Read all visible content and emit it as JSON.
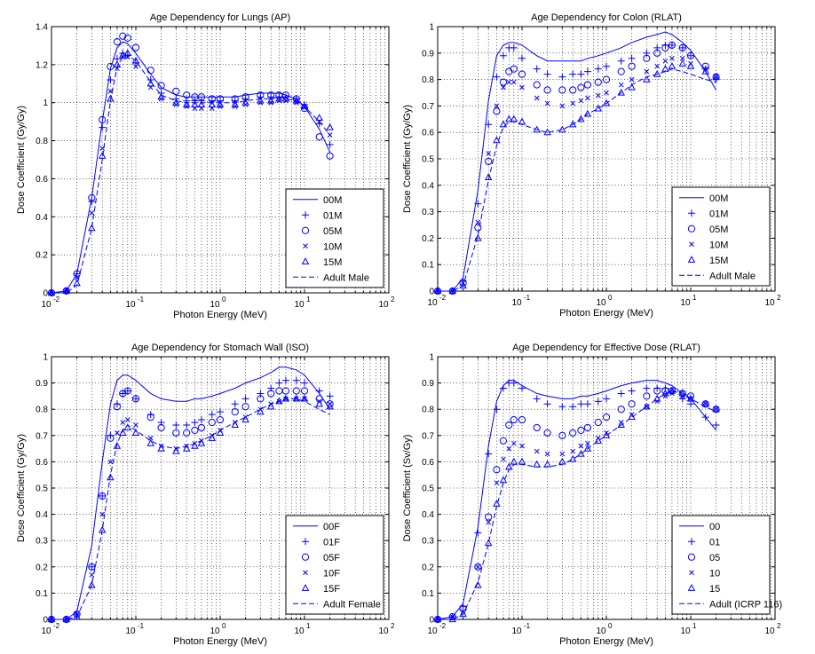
{
  "chart_data": [
    {
      "type": "scatter",
      "title": "Age Dependency for Lungs (AP)",
      "xlabel": "Photon Energy (MeV)",
      "ylabel": "Dose Coefficient (Gy/Gy)",
      "xscale": "log",
      "xlim": [
        0.01,
        100
      ],
      "ylim": [
        0,
        1.4
      ],
      "yticks": [
        0,
        0.2,
        0.4,
        0.6,
        0.8,
        1,
        1.2,
        1.4
      ],
      "ytick_labels": [
        "0",
        "0.2",
        "0.4",
        "0.6",
        "0.8",
        "1",
        "1.2",
        "1.4"
      ],
      "xtick_bases": [
        "10",
        "10",
        "10",
        "10",
        "10"
      ],
      "xtick_exps": [
        "-2",
        "-1",
        "0",
        "1",
        "2"
      ],
      "grid": true,
      "legend_position": "lower-right",
      "x": [
        0.01,
        0.015,
        0.02,
        0.03,
        0.04,
        0.05,
        0.06,
        0.07,
        0.08,
        0.1,
        0.15,
        0.2,
        0.3,
        0.4,
        0.5,
        0.6,
        0.8,
        1,
        1.5,
        2,
        3,
        4,
        5,
        6,
        8,
        10,
        15,
        20
      ],
      "series": [
        {
          "name": "00M",
          "style": "line",
          "values": [
            0.0,
            0.01,
            0.1,
            0.5,
            0.9,
            1.18,
            1.29,
            1.32,
            1.31,
            1.26,
            1.15,
            1.08,
            1.04,
            1.03,
            1.03,
            1.03,
            1.03,
            1.03,
            1.03,
            1.04,
            1.05,
            1.05,
            1.05,
            1.04,
            1.02,
            0.98,
            0.86,
            0.74
          ]
        },
        {
          "name": "01M",
          "style": "plus",
          "values": [
            0.0,
            0.01,
            0.1,
            0.48,
            0.87,
            1.12,
            1.23,
            1.26,
            1.25,
            1.21,
            1.12,
            1.05,
            1.02,
            1.01,
            1.01,
            1.01,
            1.01,
            1.01,
            1.01,
            1.02,
            1.03,
            1.03,
            1.03,
            1.03,
            1.02,
            0.99,
            0.89,
            0.78
          ]
        },
        {
          "name": "05M",
          "style": "circle",
          "values": [
            0.0,
            0.01,
            0.1,
            0.5,
            0.91,
            1.19,
            1.32,
            1.35,
            1.34,
            1.29,
            1.17,
            1.09,
            1.06,
            1.04,
            1.03,
            1.03,
            1.02,
            1.02,
            1.02,
            1.03,
            1.04,
            1.04,
            1.04,
            1.04,
            1.02,
            0.97,
            0.82,
            0.72
          ]
        },
        {
          "name": "10M",
          "style": "x",
          "values": [
            0.0,
            0.01,
            0.08,
            0.42,
            0.76,
            1.06,
            1.18,
            1.24,
            1.24,
            1.19,
            1.08,
            1.02,
            0.99,
            0.98,
            0.97,
            0.97,
            0.97,
            0.98,
            0.98,
            0.99,
            1.0,
            1.0,
            1.01,
            1.01,
            1.0,
            0.98,
            0.9,
            0.83
          ]
        },
        {
          "name": "15M",
          "style": "triangle",
          "values": [
            0.0,
            0.01,
            0.05,
            0.34,
            0.72,
            1.02,
            1.2,
            1.25,
            1.26,
            1.22,
            1.1,
            1.03,
            1.0,
            0.99,
            0.99,
            0.99,
            0.99,
            0.99,
            0.99,
            1.0,
            1.01,
            1.01,
            1.02,
            1.02,
            1.01,
            0.98,
            0.92,
            0.87
          ]
        },
        {
          "name": "Adult Male",
          "style": "dash",
          "values": [
            0.0,
            0.0,
            0.04,
            0.34,
            0.7,
            1.01,
            1.19,
            1.24,
            1.25,
            1.22,
            1.11,
            1.04,
            1.01,
            1.0,
            1.0,
            1.0,
            1.0,
            1.0,
            1.0,
            1.01,
            1.02,
            1.02,
            1.03,
            1.02,
            1.01,
            0.98,
            0.9,
            0.83
          ]
        }
      ]
    },
    {
      "type": "scatter",
      "title": "Age Dependency for Colon (RLAT)",
      "xlabel": "Photon Energy (MeV)",
      "ylabel": "Dose Coefficient (Gy/Gy)",
      "xscale": "log",
      "xlim": [
        0.01,
        100
      ],
      "ylim": [
        0,
        1
      ],
      "yticks": [
        0,
        0.1,
        0.2,
        0.3,
        0.4,
        0.5,
        0.6,
        0.7,
        0.8,
        0.9,
        1
      ],
      "ytick_labels": [
        "0",
        "0.1",
        "0.2",
        "0.3",
        "0.4",
        "0.5",
        "0.6",
        "0.7",
        "0.8",
        "0.9",
        "1"
      ],
      "xtick_bases": [
        "10",
        "10",
        "10",
        "10",
        "10"
      ],
      "xtick_exps": [
        "-2",
        "-1",
        "0",
        "1",
        "2"
      ],
      "grid": true,
      "legend_position": "lower-right",
      "x": [
        0.01,
        0.015,
        0.02,
        0.03,
        0.04,
        0.05,
        0.06,
        0.07,
        0.08,
        0.1,
        0.15,
        0.2,
        0.3,
        0.4,
        0.5,
        0.6,
        0.8,
        1,
        1.5,
        2,
        3,
        4,
        5,
        6,
        8,
        10,
        15,
        20
      ],
      "series": [
        {
          "name": "00M",
          "style": "line",
          "values": [
            0.0,
            0.0,
            0.05,
            0.38,
            0.72,
            0.89,
            0.93,
            0.94,
            0.94,
            0.93,
            0.89,
            0.87,
            0.87,
            0.87,
            0.87,
            0.88,
            0.89,
            0.9,
            0.92,
            0.94,
            0.96,
            0.97,
            0.98,
            0.97,
            0.94,
            0.91,
            0.83,
            0.76
          ]
        },
        {
          "name": "01M",
          "style": "plus",
          "values": [
            0.0,
            0.0,
            0.04,
            0.33,
            0.63,
            0.81,
            0.89,
            0.92,
            0.92,
            0.88,
            0.84,
            0.82,
            0.81,
            0.82,
            0.82,
            0.83,
            0.84,
            0.85,
            0.87,
            0.88,
            0.9,
            0.92,
            0.93,
            0.93,
            0.92,
            0.89,
            0.84,
            0.8
          ]
        },
        {
          "name": "05M",
          "style": "circle",
          "values": [
            0.0,
            0.0,
            0.03,
            0.24,
            0.49,
            0.68,
            0.79,
            0.83,
            0.84,
            0.82,
            0.78,
            0.76,
            0.76,
            0.76,
            0.77,
            0.78,
            0.79,
            0.8,
            0.83,
            0.85,
            0.88,
            0.9,
            0.92,
            0.93,
            0.92,
            0.89,
            0.85,
            0.81
          ]
        },
        {
          "name": "10M",
          "style": "x",
          "values": [
            0.0,
            0.0,
            0.03,
            0.26,
            0.52,
            0.7,
            0.77,
            0.79,
            0.79,
            0.77,
            0.73,
            0.71,
            0.7,
            0.71,
            0.72,
            0.73,
            0.74,
            0.75,
            0.78,
            0.8,
            0.83,
            0.85,
            0.87,
            0.88,
            0.88,
            0.86,
            0.84,
            0.81
          ]
        },
        {
          "name": "15M",
          "style": "triangle",
          "values": [
            0.0,
            0.0,
            0.02,
            0.2,
            0.43,
            0.57,
            0.63,
            0.65,
            0.65,
            0.64,
            0.61,
            0.6,
            0.61,
            0.63,
            0.65,
            0.67,
            0.69,
            0.71,
            0.75,
            0.77,
            0.8,
            0.82,
            0.84,
            0.85,
            0.86,
            0.85,
            0.83,
            0.81
          ]
        },
        {
          "name": "Adult Male",
          "style": "dash",
          "values": [
            0.0,
            0.0,
            0.02,
            0.21,
            0.42,
            0.55,
            0.62,
            0.64,
            0.64,
            0.63,
            0.61,
            0.6,
            0.61,
            0.63,
            0.65,
            0.67,
            0.69,
            0.71,
            0.75,
            0.78,
            0.81,
            0.82,
            0.83,
            0.84,
            0.83,
            0.82,
            0.8,
            0.79
          ]
        }
      ]
    },
    {
      "type": "scatter",
      "title": "Age Dependency for Stomach Wall (ISO)",
      "xlabel": "Photon Energy (MeV)",
      "ylabel": "Dose Coefficient (Gy/Gy)",
      "xscale": "log",
      "xlim": [
        0.01,
        100
      ],
      "ylim": [
        0,
        1
      ],
      "yticks": [
        0,
        0.1,
        0.2,
        0.3,
        0.4,
        0.5,
        0.6,
        0.7,
        0.8,
        0.9,
        1
      ],
      "ytick_labels": [
        "0",
        "0.1",
        "0.2",
        "0.3",
        "0.4",
        "0.5",
        "0.6",
        "0.7",
        "0.8",
        "0.9",
        "1"
      ],
      "xtick_bases": [
        "10",
        "10",
        "10",
        "10",
        "10"
      ],
      "xtick_exps": [
        "-2",
        "-1",
        "0",
        "1",
        "2"
      ],
      "grid": true,
      "legend_position": "lower-right",
      "x": [
        0.01,
        0.015,
        0.02,
        0.03,
        0.04,
        0.05,
        0.06,
        0.07,
        0.08,
        0.1,
        0.15,
        0.2,
        0.3,
        0.4,
        0.5,
        0.6,
        0.8,
        1,
        1.5,
        2,
        3,
        4,
        5,
        6,
        8,
        10,
        15,
        20
      ],
      "series": [
        {
          "name": "00F",
          "style": "line",
          "values": [
            0.0,
            0.0,
            0.03,
            0.28,
            0.6,
            0.82,
            0.91,
            0.93,
            0.93,
            0.91,
            0.86,
            0.84,
            0.83,
            0.83,
            0.84,
            0.84,
            0.85,
            0.86,
            0.88,
            0.9,
            0.92,
            0.94,
            0.96,
            0.96,
            0.95,
            0.93,
            0.86,
            0.8
          ]
        },
        {
          "name": "01F",
          "style": "plus",
          "values": [
            0.0,
            0.0,
            0.02,
            0.2,
            0.47,
            0.7,
            0.82,
            0.86,
            0.87,
            0.84,
            0.78,
            0.75,
            0.74,
            0.74,
            0.75,
            0.76,
            0.78,
            0.79,
            0.82,
            0.84,
            0.86,
            0.88,
            0.9,
            0.91,
            0.91,
            0.9,
            0.87,
            0.85
          ]
        },
        {
          "name": "05F",
          "style": "circle",
          "values": [
            0.0,
            0.0,
            0.02,
            0.2,
            0.47,
            0.69,
            0.81,
            0.86,
            0.87,
            0.84,
            0.77,
            0.73,
            0.71,
            0.71,
            0.72,
            0.73,
            0.75,
            0.76,
            0.79,
            0.81,
            0.84,
            0.86,
            0.87,
            0.87,
            0.87,
            0.87,
            0.84,
            0.82
          ]
        },
        {
          "name": "10F",
          "style": "x",
          "values": [
            0.0,
            0.0,
            0.02,
            0.17,
            0.4,
            0.6,
            0.71,
            0.75,
            0.76,
            0.74,
            0.69,
            0.66,
            0.65,
            0.66,
            0.67,
            0.68,
            0.7,
            0.72,
            0.75,
            0.77,
            0.8,
            0.82,
            0.83,
            0.84,
            0.84,
            0.84,
            0.83,
            0.82
          ]
        },
        {
          "name": "15F",
          "style": "triangle",
          "values": [
            0.0,
            0.0,
            0.01,
            0.13,
            0.34,
            0.54,
            0.66,
            0.71,
            0.73,
            0.71,
            0.67,
            0.65,
            0.64,
            0.65,
            0.66,
            0.67,
            0.69,
            0.71,
            0.74,
            0.76,
            0.79,
            0.81,
            0.83,
            0.84,
            0.84,
            0.84,
            0.82,
            0.81
          ]
        },
        {
          "name": "Adult Female",
          "style": "dash",
          "values": [
            0.0,
            0.0,
            0.01,
            0.13,
            0.34,
            0.55,
            0.67,
            0.72,
            0.74,
            0.72,
            0.68,
            0.66,
            0.65,
            0.66,
            0.67,
            0.68,
            0.7,
            0.72,
            0.75,
            0.77,
            0.8,
            0.82,
            0.83,
            0.84,
            0.84,
            0.83,
            0.8,
            0.78
          ]
        }
      ]
    },
    {
      "type": "scatter",
      "title": "Age Dependency for Effective Dose (RLAT)",
      "xlabel": "Photon Energy (MeV)",
      "ylabel": "Dose Coefficient (Sv/Gy)",
      "xscale": "log",
      "xlim": [
        0.01,
        100
      ],
      "ylim": [
        0,
        1
      ],
      "yticks": [
        0,
        0.1,
        0.2,
        0.3,
        0.4,
        0.5,
        0.6,
        0.7,
        0.8,
        0.9,
        1
      ],
      "ytick_labels": [
        "0",
        "0.1",
        "0.2",
        "0.3",
        "0.4",
        "0.5",
        "0.6",
        "0.7",
        "0.8",
        "0.9",
        "1"
      ],
      "xtick_bases": [
        "10",
        "10",
        "10",
        "10",
        "10"
      ],
      "xtick_exps": [
        "-2",
        "-1",
        "0",
        "1",
        "2"
      ],
      "grid": true,
      "legend_position": "lower-right",
      "x": [
        0.01,
        0.015,
        0.02,
        0.03,
        0.04,
        0.05,
        0.06,
        0.07,
        0.08,
        0.1,
        0.15,
        0.2,
        0.3,
        0.4,
        0.5,
        0.6,
        0.8,
        1,
        1.5,
        2,
        3,
        4,
        5,
        6,
        8,
        10,
        15,
        20
      ],
      "series": [
        {
          "name": "00",
          "style": "line",
          "values": [
            0.0,
            0.01,
            0.06,
            0.35,
            0.66,
            0.83,
            0.89,
            0.91,
            0.91,
            0.89,
            0.86,
            0.85,
            0.84,
            0.84,
            0.85,
            0.85,
            0.86,
            0.87,
            0.89,
            0.9,
            0.91,
            0.91,
            0.9,
            0.89,
            0.86,
            0.84,
            0.77,
            0.72
          ]
        },
        {
          "name": "01",
          "style": "plus",
          "values": [
            0.0,
            0.01,
            0.05,
            0.33,
            0.63,
            0.8,
            0.88,
            0.9,
            0.9,
            0.88,
            0.84,
            0.82,
            0.81,
            0.81,
            0.82,
            0.82,
            0.83,
            0.84,
            0.86,
            0.87,
            0.88,
            0.88,
            0.88,
            0.87,
            0.84,
            0.82,
            0.77,
            0.74
          ]
        },
        {
          "name": "05",
          "style": "circle",
          "values": [
            0.0,
            0.01,
            0.04,
            0.2,
            0.39,
            0.57,
            0.68,
            0.74,
            0.76,
            0.76,
            0.73,
            0.71,
            0.7,
            0.71,
            0.72,
            0.73,
            0.75,
            0.77,
            0.8,
            0.82,
            0.85,
            0.87,
            0.87,
            0.87,
            0.86,
            0.85,
            0.82,
            0.8
          ]
        },
        {
          "name": "10",
          "style": "x",
          "values": [
            0.0,
            0.01,
            0.03,
            0.2,
            0.37,
            0.52,
            0.61,
            0.65,
            0.67,
            0.66,
            0.64,
            0.63,
            0.63,
            0.64,
            0.66,
            0.67,
            0.69,
            0.71,
            0.75,
            0.78,
            0.81,
            0.83,
            0.85,
            0.86,
            0.85,
            0.84,
            0.82,
            0.8
          ]
        },
        {
          "name": "15",
          "style": "triangle",
          "values": [
            0.0,
            0.0,
            0.02,
            0.13,
            0.29,
            0.44,
            0.53,
            0.58,
            0.6,
            0.6,
            0.59,
            0.59,
            0.6,
            0.61,
            0.63,
            0.65,
            0.68,
            0.7,
            0.74,
            0.77,
            0.81,
            0.84,
            0.86,
            0.87,
            0.86,
            0.84,
            0.82,
            0.8
          ]
        },
        {
          "name": "Adult (ICRP 116)",
          "style": "dash",
          "values": [
            0.0,
            0.0,
            0.02,
            0.14,
            0.29,
            0.43,
            0.52,
            0.57,
            0.59,
            0.59,
            0.58,
            0.58,
            0.59,
            0.61,
            0.63,
            0.65,
            0.68,
            0.7,
            0.74,
            0.77,
            0.81,
            0.84,
            0.86,
            0.87,
            0.86,
            0.84,
            0.81,
            0.79
          ]
        }
      ]
    }
  ]
}
